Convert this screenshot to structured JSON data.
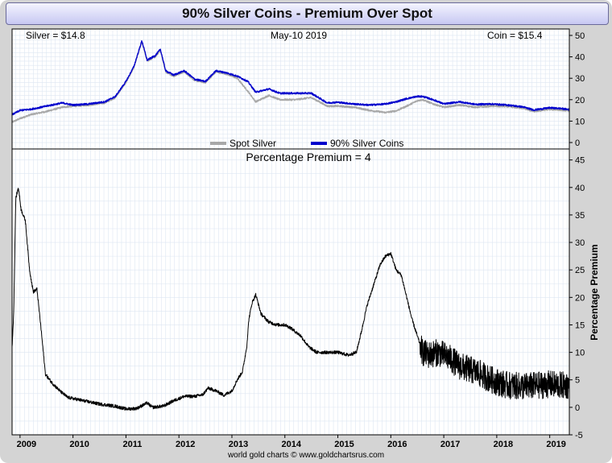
{
  "title": "90% Silver Coins - Premium Over Spot",
  "footer": "world gold charts © www.goldchartsrus.com",
  "colors": {
    "spot": "#a8a8a8",
    "coin": "#0000cc",
    "premium": "#000000",
    "grid": "#dde6f2"
  },
  "chart_data": [
    {
      "type": "line",
      "title": "",
      "info_left": "Silver = $14.8",
      "info_center": "May-10  2019",
      "info_right": "Coin = $15.4",
      "ylim": [
        -3,
        53
      ],
      "yticks": [
        0,
        10,
        20,
        30,
        40,
        50
      ],
      "legend_position": "bottom-center",
      "x_start": 2008.85,
      "x_end": 2019.37,
      "series": [
        {
          "name": "Spot Silver",
          "points": [
            [
              2008.85,
              9.5
            ],
            [
              2009.0,
              11.2
            ],
            [
              2009.2,
              13.0
            ],
            [
              2009.5,
              14.5
            ],
            [
              2009.8,
              16.5
            ],
            [
              2010.0,
              17.0
            ],
            [
              2010.3,
              17.5
            ],
            [
              2010.6,
              18.5
            ],
            [
              2010.8,
              21.0
            ],
            [
              2011.0,
              28.0
            ],
            [
              2011.15,
              35.0
            ],
            [
              2011.3,
              47.0
            ],
            [
              2011.4,
              38.0
            ],
            [
              2011.55,
              40.0
            ],
            [
              2011.65,
              43.0
            ],
            [
              2011.75,
              33.0
            ],
            [
              2011.9,
              31.0
            ],
            [
              2012.1,
              33.0
            ],
            [
              2012.3,
              29.0
            ],
            [
              2012.5,
              28.0
            ],
            [
              2012.7,
              33.0
            ],
            [
              2012.9,
              32.0
            ],
            [
              2013.1,
              30.0
            ],
            [
              2013.3,
              24.0
            ],
            [
              2013.45,
              19.0
            ],
            [
              2013.7,
              22.0
            ],
            [
              2013.9,
              20.0
            ],
            [
              2014.2,
              20.0
            ],
            [
              2014.5,
              21.0
            ],
            [
              2014.8,
              17.0
            ],
            [
              2015.0,
              17.0
            ],
            [
              2015.3,
              16.5
            ],
            [
              2015.6,
              15.0
            ],
            [
              2015.9,
              14.0
            ],
            [
              2016.1,
              14.8
            ],
            [
              2016.3,
              17.0
            ],
            [
              2016.5,
              19.5
            ],
            [
              2016.6,
              20.0
            ],
            [
              2016.8,
              18.0
            ],
            [
              2017.0,
              16.5
            ],
            [
              2017.3,
              17.5
            ],
            [
              2017.6,
              16.5
            ],
            [
              2017.9,
              17.0
            ],
            [
              2018.2,
              16.8
            ],
            [
              2018.5,
              16.0
            ],
            [
              2018.7,
              14.5
            ],
            [
              2019.0,
              15.5
            ],
            [
              2019.2,
              15.2
            ],
            [
              2019.37,
              14.8
            ]
          ]
        },
        {
          "name": "90% Silver Coins",
          "points": [
            [
              2008.85,
              13.0
            ],
            [
              2009.0,
              15.0
            ],
            [
              2009.2,
              15.5
            ],
            [
              2009.5,
              17.0
            ],
            [
              2009.8,
              18.5
            ],
            [
              2010.0,
              17.5
            ],
            [
              2010.3,
              18.0
            ],
            [
              2010.6,
              19.0
            ],
            [
              2010.8,
              21.5
            ],
            [
              2011.0,
              28.5
            ],
            [
              2011.15,
              35.5
            ],
            [
              2011.3,
              47.5
            ],
            [
              2011.4,
              38.5
            ],
            [
              2011.55,
              40.5
            ],
            [
              2011.65,
              43.5
            ],
            [
              2011.75,
              33.5
            ],
            [
              2011.9,
              31.5
            ],
            [
              2012.1,
              33.5
            ],
            [
              2012.3,
              29.5
            ],
            [
              2012.5,
              28.5
            ],
            [
              2012.7,
              33.5
            ],
            [
              2012.9,
              32.5
            ],
            [
              2013.1,
              31.0
            ],
            [
              2013.3,
              28.5
            ],
            [
              2013.45,
              23.5
            ],
            [
              2013.7,
              25.0
            ],
            [
              2013.9,
              23.0
            ],
            [
              2014.2,
              23.0
            ],
            [
              2014.5,
              23.0
            ],
            [
              2014.8,
              18.5
            ],
            [
              2015.0,
              18.8
            ],
            [
              2015.3,
              18.0
            ],
            [
              2015.6,
              17.5
            ],
            [
              2015.9,
              18.0
            ],
            [
              2016.1,
              19.0
            ],
            [
              2016.3,
              20.5
            ],
            [
              2016.5,
              21.5
            ],
            [
              2016.6,
              21.5
            ],
            [
              2016.8,
              20.0
            ],
            [
              2017.0,
              18.0
            ],
            [
              2017.3,
              19.0
            ],
            [
              2017.6,
              17.8
            ],
            [
              2017.9,
              18.0
            ],
            [
              2018.2,
              17.5
            ],
            [
              2018.5,
              16.6
            ],
            [
              2018.7,
              15.2
            ],
            [
              2019.0,
              16.2
            ],
            [
              2019.2,
              15.9
            ],
            [
              2019.37,
              15.4
            ]
          ]
        }
      ]
    },
    {
      "type": "line",
      "title": "Percentage Premium = 4",
      "ylabel": "Percentage Premium",
      "ylim": [
        -5,
        47
      ],
      "yticks": [
        -5,
        0,
        5,
        10,
        15,
        20,
        25,
        30,
        35,
        40,
        45
      ],
      "x_categories": [
        "2009",
        "2010",
        "2011",
        "2012",
        "2013",
        "2014",
        "2015",
        "2016",
        "2017",
        "2018",
        "2019"
      ],
      "x_tick_values": [
        2009,
        2010,
        2011,
        2012,
        2013,
        2014,
        2015,
        2016,
        2017,
        2018,
        2019
      ],
      "x_start": 2008.85,
      "x_end": 2019.37,
      "series": [
        {
          "name": "Percentage Premium",
          "noise_from": 2016.55,
          "noise_amplitude": 2.5,
          "points": [
            [
              2008.85,
              11.0
            ],
            [
              2008.88,
              17.0
            ],
            [
              2008.92,
              38.0
            ],
            [
              2008.97,
              40.0
            ],
            [
              2009.02,
              36.0
            ],
            [
              2009.1,
              34.0
            ],
            [
              2009.18,
              25.0
            ],
            [
              2009.25,
              21.0
            ],
            [
              2009.32,
              21.5
            ],
            [
              2009.4,
              14.0
            ],
            [
              2009.48,
              6.0
            ],
            [
              2009.6,
              4.5
            ],
            [
              2009.75,
              3.0
            ],
            [
              2009.9,
              1.8
            ],
            [
              2010.2,
              1.2
            ],
            [
              2010.5,
              0.6
            ],
            [
              2010.8,
              0.2
            ],
            [
              2011.0,
              -0.3
            ],
            [
              2011.2,
              -0.2
            ],
            [
              2011.4,
              0.8
            ],
            [
              2011.5,
              0.0
            ],
            [
              2011.7,
              0.2
            ],
            [
              2011.9,
              1.2
            ],
            [
              2012.1,
              2.0
            ],
            [
              2012.3,
              2.0
            ],
            [
              2012.45,
              2.3
            ],
            [
              2012.55,
              3.5
            ],
            [
              2012.7,
              3.0
            ],
            [
              2012.85,
              2.2
            ],
            [
              2013.0,
              3.0
            ],
            [
              2013.1,
              5.0
            ],
            [
              2013.2,
              6.5
            ],
            [
              2013.28,
              11.0
            ],
            [
              2013.32,
              16.0
            ],
            [
              2013.38,
              19.0
            ],
            [
              2013.45,
              20.5
            ],
            [
              2013.55,
              17.0
            ],
            [
              2013.7,
              15.5
            ],
            [
              2013.85,
              15.0
            ],
            [
              2014.0,
              15.0
            ],
            [
              2014.1,
              14.5
            ],
            [
              2014.3,
              13.0
            ],
            [
              2014.45,
              11.0
            ],
            [
              2014.6,
              10.0
            ],
            [
              2014.8,
              10.0
            ],
            [
              2015.0,
              10.0
            ],
            [
              2015.2,
              9.5
            ],
            [
              2015.35,
              10.0
            ],
            [
              2015.45,
              14.0
            ],
            [
              2015.55,
              18.5
            ],
            [
              2015.7,
              23.0
            ],
            [
              2015.8,
              26.0
            ],
            [
              2015.9,
              27.5
            ],
            [
              2016.0,
              28.0
            ],
            [
              2016.1,
              25.0
            ],
            [
              2016.2,
              24.0
            ],
            [
              2016.3,
              20.0
            ],
            [
              2016.4,
              16.0
            ],
            [
              2016.5,
              13.0
            ],
            [
              2016.6,
              10.0
            ],
            [
              2016.7,
              9.5
            ],
            [
              2016.9,
              10.0
            ],
            [
              2017.1,
              9.0
            ],
            [
              2017.3,
              7.5
            ],
            [
              2017.6,
              6.5
            ],
            [
              2017.9,
              5.0
            ],
            [
              2018.2,
              4.0
            ],
            [
              2018.5,
              3.8
            ],
            [
              2018.8,
              4.0
            ],
            [
              2019.0,
              4.2
            ],
            [
              2019.2,
              4.0
            ],
            [
              2019.37,
              4.0
            ]
          ]
        }
      ]
    }
  ]
}
